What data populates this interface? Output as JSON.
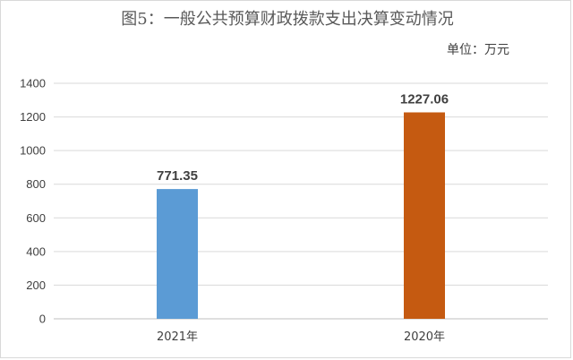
{
  "chart_data": {
    "type": "bar",
    "title": "图5：一般公共预算财政拨款支出决算变动情况",
    "unit_label": "单位：万元",
    "categories": [
      "2021年",
      "2020年"
    ],
    "values": [
      771.35,
      1227.06
    ],
    "value_labels": [
      "771.35",
      "1227.06"
    ],
    "colors": [
      "#5b9bd5",
      "#c55a11"
    ],
    "ylim": [
      0,
      1400
    ],
    "yticks": [
      0,
      200,
      400,
      600,
      800,
      1000,
      1200,
      1400
    ],
    "grid": true,
    "legend": "none"
  }
}
